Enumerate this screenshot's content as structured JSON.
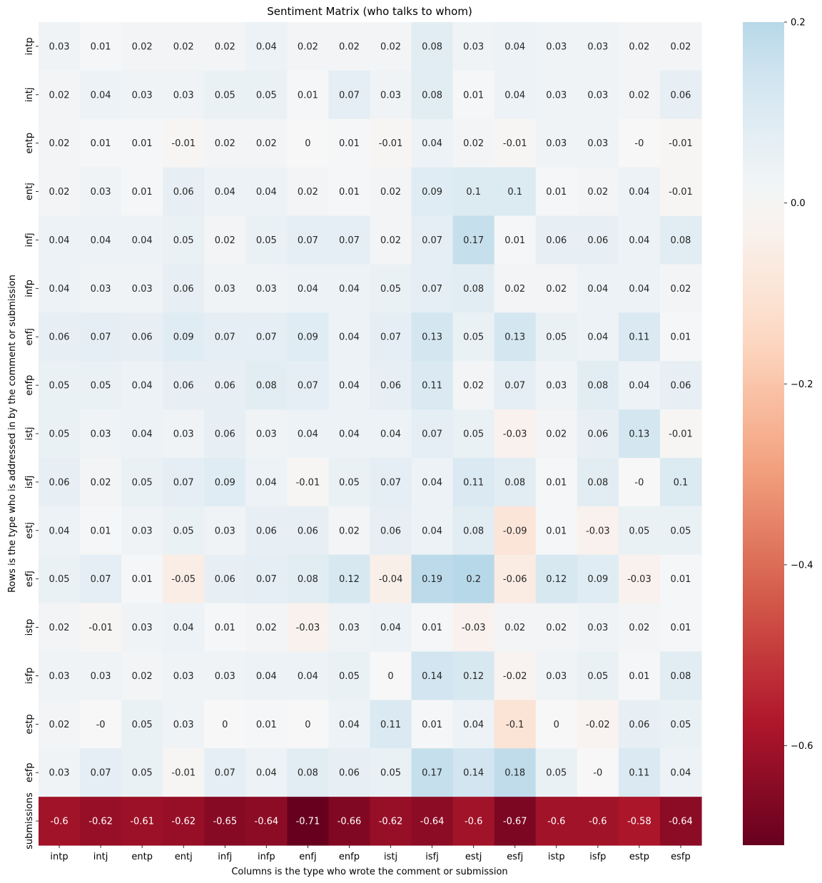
{
  "chart_data": {
    "type": "heatmap",
    "title": "Sentiment Matrix (who talks to whom)",
    "xlabel": "Columns is the type who wrote the comment or submission",
    "ylabel": "Rows is the type who is addressed in by the comment or submission",
    "columns": [
      "intp",
      "intj",
      "entp",
      "entj",
      "infj",
      "infp",
      "enfj",
      "enfp",
      "istj",
      "isfj",
      "estj",
      "esfj",
      "istp",
      "isfp",
      "estp",
      "esfp"
    ],
    "rows": [
      "intp",
      "intj",
      "entp",
      "entj",
      "infj",
      "infp",
      "enfj",
      "enfp",
      "istj",
      "isfj",
      "estj",
      "esfj",
      "istp",
      "isfp",
      "estp",
      "esfp",
      "submissions"
    ],
    "values": [
      [
        "0.03",
        "0.01",
        "0.02",
        "0.02",
        "0.02",
        "0.04",
        "0.02",
        "0.02",
        "0.02",
        "0.08",
        "0.03",
        "0.04",
        "0.03",
        "0.03",
        "0.02",
        "0.02"
      ],
      [
        "0.02",
        "0.04",
        "0.03",
        "0.03",
        "0.05",
        "0.05",
        "0.01",
        "0.07",
        "0.03",
        "0.08",
        "0.01",
        "0.04",
        "0.03",
        "0.03",
        "0.02",
        "0.06"
      ],
      [
        "0.02",
        "0.01",
        "0.01",
        "-0.01",
        "0.02",
        "0.02",
        "0",
        "0.01",
        "-0.01",
        "0.04",
        "0.02",
        "-0.01",
        "0.03",
        "0.03",
        "-0",
        "-0.01"
      ],
      [
        "0.02",
        "0.03",
        "0.01",
        "0.06",
        "0.04",
        "0.04",
        "0.02",
        "0.01",
        "0.02",
        "0.09",
        "0.1",
        "0.1",
        "0.01",
        "0.02",
        "0.04",
        "-0.01"
      ],
      [
        "0.04",
        "0.04",
        "0.04",
        "0.05",
        "0.02",
        "0.05",
        "0.07",
        "0.07",
        "0.02",
        "0.07",
        "0.17",
        "0.01",
        "0.06",
        "0.06",
        "0.04",
        "0.08"
      ],
      [
        "0.04",
        "0.03",
        "0.03",
        "0.06",
        "0.03",
        "0.03",
        "0.04",
        "0.04",
        "0.05",
        "0.07",
        "0.08",
        "0.02",
        "0.02",
        "0.04",
        "0.04",
        "0.02"
      ],
      [
        "0.06",
        "0.07",
        "0.06",
        "0.09",
        "0.07",
        "0.07",
        "0.09",
        "0.04",
        "0.07",
        "0.13",
        "0.05",
        "0.13",
        "0.05",
        "0.04",
        "0.11",
        "0.01"
      ],
      [
        "0.05",
        "0.05",
        "0.04",
        "0.06",
        "0.06",
        "0.08",
        "0.07",
        "0.04",
        "0.06",
        "0.11",
        "0.02",
        "0.07",
        "0.03",
        "0.08",
        "0.04",
        "0.06"
      ],
      [
        "0.05",
        "0.03",
        "0.04",
        "0.03",
        "0.06",
        "0.03",
        "0.04",
        "0.04",
        "0.04",
        "0.07",
        "0.05",
        "-0.03",
        "0.02",
        "0.06",
        "0.13",
        "-0.01"
      ],
      [
        "0.06",
        "0.02",
        "0.05",
        "0.07",
        "0.09",
        "0.04",
        "-0.01",
        "0.05",
        "0.07",
        "0.04",
        "0.11",
        "0.08",
        "0.01",
        "0.08",
        "-0",
        "0.1"
      ],
      [
        "0.04",
        "0.01",
        "0.03",
        "0.05",
        "0.03",
        "0.06",
        "0.06",
        "0.02",
        "0.06",
        "0.04",
        "0.08",
        "-0.09",
        "0.01",
        "-0.03",
        "0.05",
        "0.05"
      ],
      [
        "0.05",
        "0.07",
        "0.01",
        "-0.05",
        "0.06",
        "0.07",
        "0.08",
        "0.12",
        "-0.04",
        "0.19",
        "0.2",
        "-0.06",
        "0.12",
        "0.09",
        "-0.03",
        "0.01"
      ],
      [
        "0.02",
        "-0.01",
        "0.03",
        "0.04",
        "0.01",
        "0.02",
        "-0.03",
        "0.03",
        "0.04",
        "0.01",
        "-0.03",
        "0.02",
        "0.02",
        "0.03",
        "0.02",
        "0.01"
      ],
      [
        "0.03",
        "0.03",
        "0.02",
        "0.03",
        "0.03",
        "0.04",
        "0.04",
        "0.05",
        "0",
        "0.14",
        "0.12",
        "-0.02",
        "0.03",
        "0.05",
        "0.01",
        "0.08"
      ],
      [
        "0.02",
        "-0",
        "0.05",
        "0.03",
        "0",
        "0.01",
        "0",
        "0.04",
        "0.11",
        "0.01",
        "0.04",
        "-0.1",
        "0",
        "-0.02",
        "0.06",
        "0.05"
      ],
      [
        "0.03",
        "0.07",
        "0.05",
        "-0.01",
        "0.07",
        "0.04",
        "0.08",
        "0.06",
        "0.05",
        "0.17",
        "0.14",
        "0.18",
        "0.05",
        "-0",
        "0.11",
        "0.04"
      ],
      [
        "-0.6",
        "-0.62",
        "-0.61",
        "-0.62",
        "-0.65",
        "-0.64",
        "-0.71",
        "-0.66",
        "-0.62",
        "-0.64",
        "-0.6",
        "-0.67",
        "-0.6",
        "-0.6",
        "-0.58",
        "-0.64"
      ]
    ],
    "colorbar": {
      "min": -0.71,
      "max": 0.2,
      "center": 0,
      "colormap": "RdBu",
      "ticks": [
        0.2,
        0.0,
        -0.2,
        -0.4,
        -0.6
      ],
      "tick_labels": [
        "0.2",
        "0.0",
        "−0.2",
        "−0.4",
        "−0.6"
      ]
    }
  }
}
